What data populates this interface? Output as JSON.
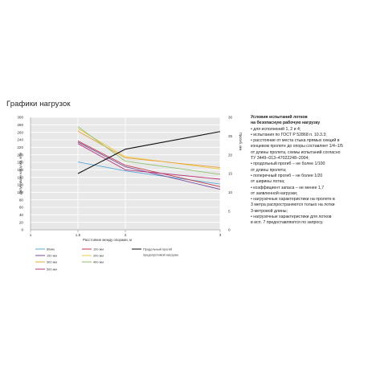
{
  "page": {
    "title": "Графики нагрузок"
  },
  "colors": {
    "plot_bg": "#e8e8e8",
    "grid": "#ffffff",
    "deflection": "#111111"
  },
  "notes": {
    "title_line1": "Условия испытаний лотков",
    "title_line2": "на безопасную рабочую нагрузку",
    "lines": [
      "• для исполнений 1, 2 и 4;",
      "• испытания по ГОСТ Р 52868 п. 10.3.3;",
      "• расстояние от места стыка прямых секций в",
      "концевом пролете до опоры составляет 1/4–1/5",
      "от длины пролета, схемы испытаний согласно",
      "ТУ 3449–013–47022248–2004;",
      "• продольный прогиб – не более 1/100",
      "от длины пролета;",
      "• поперечный прогиб – не более 1/20",
      "от ширины лотка;",
      "• коэффициент запаса – не менее 1,7",
      "от заявленной нагрузки;",
      "• нагрузочные характеристики на пролете в",
      "3 метра распространяются только на лотки",
      "3-метровой длины;",
      "• нагрузочные характеристики для лотков",
      "в исп. 7 предоставляются по запросу."
    ]
  },
  "chart_data": {
    "type": "line",
    "xlabel": "Расстояние между опорами, м",
    "ylabel": "Допустимая нагрузка, кг/м",
    "y2label": "Прогиб, мм",
    "x_ticks": [
      "1",
      "1.5",
      "2",
      "3"
    ],
    "x_tick_values": [
      1,
      1.5,
      2,
      3
    ],
    "xlim": [
      1,
      3
    ],
    "ylim": [
      0,
      300
    ],
    "y_ticks": [
      0,
      20,
      40,
      60,
      80,
      100,
      120,
      140,
      160,
      180,
      200,
      220,
      240,
      260,
      280,
      300
    ],
    "y2lim": [
      0,
      30
    ],
    "y2_ticks": [
      0,
      5,
      10,
      15,
      20,
      25,
      30
    ],
    "grid": true,
    "legend_position": "bottom",
    "x": [
      1.5,
      2,
      3
    ],
    "series": [
      {
        "name": "80мм",
        "color": "#55a8d8",
        "values": [
          181,
          157,
          122
        ]
      },
      {
        "name": "100 мм",
        "color": "#c0394a",
        "values": [
          237,
          172,
          115
        ]
      },
      {
        "name": "150 мм",
        "color": "#7a4d9c",
        "values": [
          234,
          168,
          108
        ]
      },
      {
        "name": "200 мм",
        "color": "#f2c94c",
        "values": [
          270,
          195,
          162
        ]
      },
      {
        "name": "300 мм",
        "color": "#e8a43c",
        "values": [
          263,
          192,
          166
        ]
      },
      {
        "name": "400 мм",
        "color": "#8fc26a",
        "values": [
          275,
          183,
          148
        ]
      },
      {
        "name": "500 мм",
        "color": "#b8357a",
        "values": [
          230,
          160,
          135
        ]
      },
      {
        "name": "Продольный прогиб предопустимой нагрузке",
        "color": "#111111",
        "axis": "right",
        "values": [
          15,
          21.5,
          26.2
        ]
      }
    ],
    "legend": [
      {
        "label": "80мм",
        "color": "#55a8d8"
      },
      {
        "label": "150 мм",
        "color": "#7a4d9c"
      },
      {
        "label": "300 мм",
        "color": "#e8a43c"
      },
      {
        "label": "500 мм",
        "color": "#b8357a"
      },
      {
        "label": "100 мм",
        "color": "#c0394a"
      },
      {
        "label": "200 мм",
        "color": "#f2c94c"
      },
      {
        "label": "400 мм",
        "color": "#8fc26a"
      },
      {
        "label": "Продольный прогиб",
        "label2": "предопустимой нагрузке",
        "color": "#111111"
      }
    ]
  }
}
